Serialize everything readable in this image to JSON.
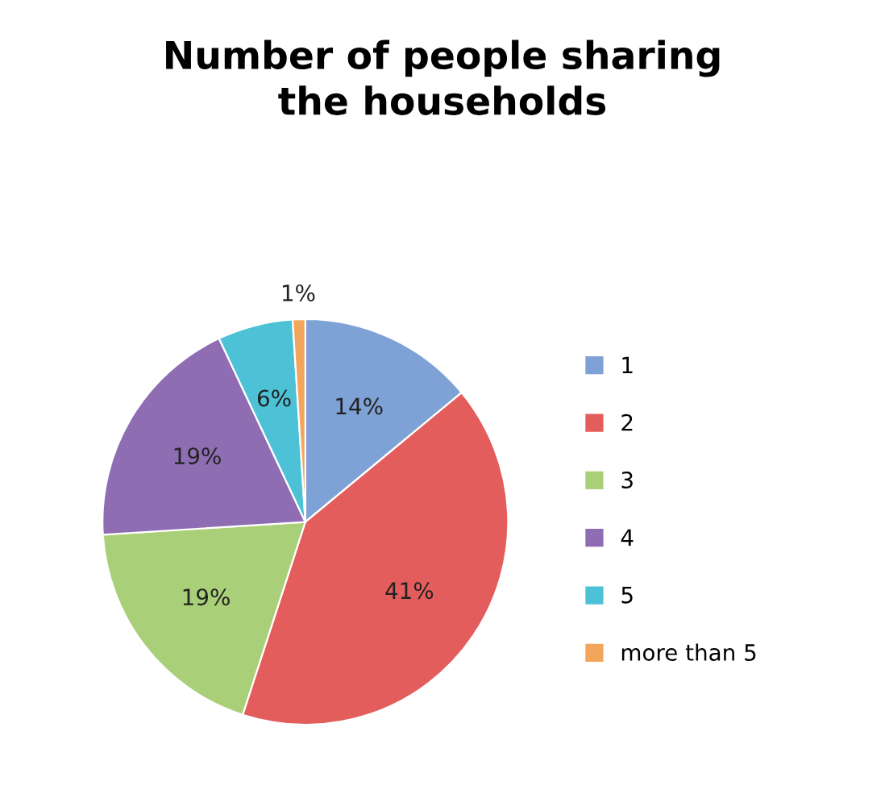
{
  "chart_data": {
    "type": "pie",
    "title": "Number of people sharing\nthe households",
    "categories": [
      "1",
      "2",
      "3",
      "4",
      "5",
      "more than 5"
    ],
    "values": [
      14,
      41,
      19,
      19,
      6,
      1
    ],
    "value_labels": [
      "14%",
      "41%",
      "19%",
      "19%",
      "6%",
      "1%"
    ],
    "colors": [
      "#7ea2d6",
      "#e35d5c",
      "#a9cf78",
      "#8e6db3",
      "#4dc1d6",
      "#f4a55c"
    ],
    "legend": "right"
  }
}
